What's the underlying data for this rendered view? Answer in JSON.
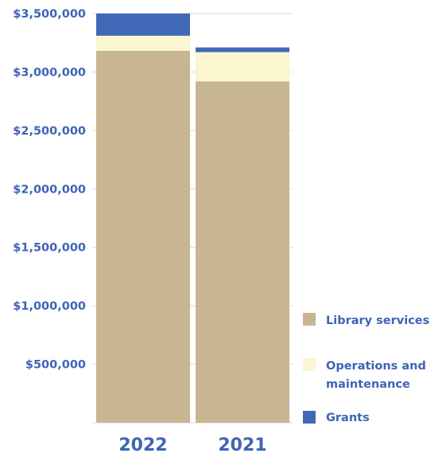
{
  "chart_data": {
    "type": "bar",
    "stacked": true,
    "categories": [
      "2022",
      "2021"
    ],
    "series": [
      {
        "name": "Library services",
        "values": [
          3180000,
          2920000
        ],
        "color": "#c8b591"
      },
      {
        "name": "Operations and maintenance",
        "values": [
          130000,
          250000
        ],
        "color": "#fbf5d0"
      },
      {
        "name": "Grants",
        "values": [
          190000,
          40000
        ],
        "color": "#4268b8"
      }
    ],
    "yticks": [
      "$500,000",
      "$1,000,000",
      "$1,500,000",
      "$2,000,000",
      "$2,500,000",
      "$3,000,000",
      "$3,500,000"
    ],
    "ytick_values": [
      500000,
      1000000,
      1500000,
      2000000,
      2500000,
      3000000,
      3500000
    ],
    "ylim": [
      0,
      3500000
    ],
    "grid": true,
    "legend_position": "right",
    "legend": {
      "items": [
        {
          "lines": [
            "Library services"
          ],
          "color": "#c8b591"
        },
        {
          "lines": [
            "Operations and",
            "maintenance"
          ],
          "color": "#fbf5d0"
        },
        {
          "lines": [
            "Grants"
          ],
          "color": "#4268b8"
        }
      ]
    }
  }
}
